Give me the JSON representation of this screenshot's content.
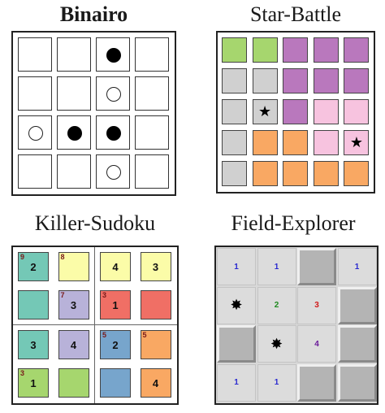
{
  "titles": {
    "binairo": "Binairo",
    "star_battle": "Star-Battle",
    "killer_sudoku": "Killer-Sudoku",
    "field_explorer": "Field-Explorer"
  },
  "binairo": {
    "size": 4,
    "grid": [
      [
        "",
        "",
        "black",
        ""
      ],
      [
        "",
        "",
        "white",
        ""
      ],
      [
        "white",
        "black",
        "black",
        ""
      ],
      [
        "",
        "",
        "white",
        ""
      ]
    ]
  },
  "star_battle": {
    "size": 5,
    "star_glyph": "★",
    "colors": {
      "green": "#a6d66e",
      "purple": "#b978bd",
      "gray": "#d0d0d0",
      "pink": "#f7c3df",
      "orange": "#f9a863"
    },
    "regions": [
      [
        "green",
        "green",
        "purple",
        "purple",
        "purple"
      ],
      [
        "gray",
        "gray",
        "purple",
        "purple",
        "purple"
      ],
      [
        "gray",
        "gray",
        "purple",
        "pink",
        "pink"
      ],
      [
        "gray",
        "orange",
        "orange",
        "pink",
        "pink"
      ],
      [
        "gray",
        "orange",
        "orange",
        "orange",
        "orange"
      ]
    ],
    "stars": [
      [
        2,
        1
      ],
      [
        3,
        4
      ]
    ]
  },
  "killer_sudoku": {
    "size": 4,
    "colors": {
      "teal": "#74c8b6",
      "yellow": "#fbfca8",
      "lavender": "#b8b2d9",
      "red": "#f06f65",
      "blue": "#77a5cc",
      "orange": "#f9a863",
      "green": "#a6d66e"
    },
    "cells": [
      [
        {
          "c": "teal",
          "v": "2",
          "cage": "9"
        },
        {
          "c": "yellow",
          "v": "",
          "cage": "8"
        },
        {
          "c": "yellow",
          "v": "4",
          "cage": ""
        },
        {
          "c": "yellow",
          "v": "3",
          "cage": ""
        }
      ],
      [
        {
          "c": "teal",
          "v": "",
          "cage": ""
        },
        {
          "c": "lavender",
          "v": "3",
          "cage": "7"
        },
        {
          "c": "red",
          "v": "1",
          "cage": "3"
        },
        {
          "c": "red",
          "v": "",
          "cage": ""
        }
      ],
      [
        {
          "c": "teal",
          "v": "3",
          "cage": ""
        },
        {
          "c": "lavender",
          "v": "4",
          "cage": ""
        },
        {
          "c": "blue",
          "v": "2",
          "cage": "5"
        },
        {
          "c": "orange",
          "v": "",
          "cage": "5"
        }
      ],
      [
        {
          "c": "green",
          "v": "1",
          "cage": "3"
        },
        {
          "c": "green",
          "v": "",
          "cage": ""
        },
        {
          "c": "blue",
          "v": "",
          "cage": ""
        },
        {
          "c": "orange",
          "v": "4",
          "cage": ""
        }
      ]
    ]
  },
  "field_explorer": {
    "size": 4,
    "mine_glyph": "✸",
    "number_colors": {
      "1": "#2a2ad0",
      "2": "#1f8a1f",
      "3": "#d11a1a",
      "4": "#6a1a9a"
    },
    "cells": [
      [
        {
          "t": "num",
          "v": "1"
        },
        {
          "t": "num",
          "v": "1"
        },
        {
          "t": "closed"
        },
        {
          "t": "num",
          "v": "1"
        }
      ],
      [
        {
          "t": "mine"
        },
        {
          "t": "num",
          "v": "2"
        },
        {
          "t": "num",
          "v": "3"
        },
        {
          "t": "closed"
        }
      ],
      [
        {
          "t": "closed"
        },
        {
          "t": "mine"
        },
        {
          "t": "num",
          "v": "4"
        },
        {
          "t": "closed"
        }
      ],
      [
        {
          "t": "num",
          "v": "1"
        },
        {
          "t": "num",
          "v": "1"
        },
        {
          "t": "closed"
        },
        {
          "t": "closed"
        }
      ]
    ]
  }
}
